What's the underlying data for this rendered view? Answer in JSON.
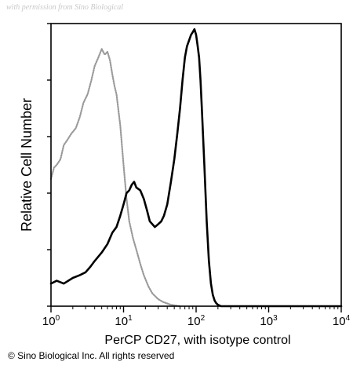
{
  "watermark": "with permission from Sino Biological",
  "footer": "© Sino Biological Inc. All rights reserved",
  "chart_data": {
    "type": "line",
    "title": "",
    "xlabel": "PerCP CD27, with isotype control",
    "ylabel": "Relative Cell Number",
    "xscale": "log",
    "xlim": [
      1,
      10000
    ],
    "ylim": [
      0,
      100
    ],
    "x_ticks": [
      {
        "value": 1,
        "base": "10",
        "exp": "0"
      },
      {
        "value": 10,
        "base": "10",
        "exp": "1"
      },
      {
        "value": 100,
        "base": "10",
        "exp": "2"
      },
      {
        "value": 1000,
        "base": "10",
        "exp": "3"
      },
      {
        "value": 10000,
        "base": "10",
        "exp": "4"
      }
    ],
    "y_ticks": [
      0,
      20,
      40,
      60,
      80,
      100
    ],
    "grid": false,
    "legend": "none",
    "series": [
      {
        "color": "#9a9a9a",
        "style": "dotted",
        "x": [
          1.0,
          1.1,
          1.2,
          1.35,
          1.5,
          1.7,
          1.9,
          2.2,
          2.5,
          2.8,
          3.2,
          3.6,
          4.0,
          4.5,
          5.0,
          5.5,
          6.0,
          6.5,
          7.0,
          7.5,
          8.0,
          9.0,
          10.0,
          11.0,
          12.0,
          13.5,
          15.0,
          17.0,
          19.0,
          22.0,
          25.0,
          30.0,
          35.0,
          45.0,
          60.0
        ],
        "y": [
          45,
          49,
          50,
          52,
          57,
          59,
          61,
          63,
          67,
          72,
          75,
          80,
          85,
          88,
          91,
          89,
          90,
          87,
          82,
          78,
          75,
          64,
          50,
          38,
          30,
          24,
          20,
          15,
          11,
          7,
          4.5,
          2.5,
          1.5,
          0.5,
          0
        ]
      },
      {
        "color": "#000000",
        "style": "solid",
        "x": [
          1.0,
          1.2,
          1.5,
          2.0,
          2.5,
          3.0,
          3.5,
          4.0,
          5.0,
          6.0,
          7.0,
          8.0,
          9.0,
          10.0,
          11.0,
          12.0,
          13.0,
          14.0,
          15.0,
          17.0,
          19.0,
          21.0,
          23.0,
          25.0,
          27.0,
          30.0,
          33.0,
          36.0,
          40.0,
          45.0,
          50.0,
          55.0,
          60.0,
          65.0,
          70.0,
          75.0,
          80.0,
          85.0,
          90.0,
          95.0,
          100.0,
          105.0,
          110.0,
          115.0,
          120.0,
          130.0,
          140.0,
          150.0,
          160.0,
          170.0,
          180.0,
          190.0,
          200.0,
          220.0,
          250.0,
          300.0,
          500.0,
          1000.0,
          3000.0,
          10000.0
        ],
        "y": [
          8,
          9,
          8,
          10,
          11,
          12,
          14,
          16,
          19,
          22,
          26,
          28,
          32,
          36,
          40,
          41,
          43,
          44,
          42,
          41,
          38,
          34,
          30,
          29,
          28,
          29,
          30,
          32,
          36,
          44,
          52,
          61,
          70,
          80,
          88,
          92,
          94,
          96,
          97,
          98,
          96,
          92,
          88,
          80,
          70,
          50,
          30,
          16,
          8,
          4,
          2,
          1,
          0.5,
          0,
          0,
          0,
          0,
          0,
          0,
          0
        ]
      }
    ]
  }
}
